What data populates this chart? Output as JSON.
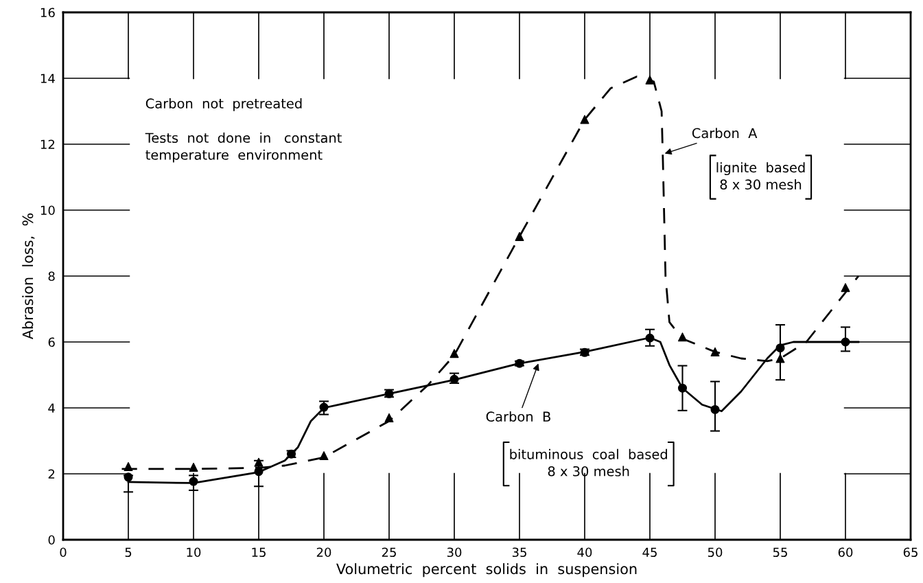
{
  "chart_data": {
    "type": "line",
    "xlabel": "Volumetric  percent  solids  in  suspension",
    "ylabel": "Abrasion  loss,  %",
    "xlim": [
      0,
      65
    ],
    "ylim": [
      0,
      16
    ],
    "xticks": [
      0,
      5,
      10,
      15,
      20,
      25,
      30,
      35,
      40,
      45,
      50,
      55,
      60,
      65
    ],
    "yticks": [
      0,
      2,
      4,
      6,
      8,
      10,
      12,
      14,
      16
    ],
    "grid": false,
    "legend": false,
    "series": [
      {
        "line_style": "dashed",
        "color": "#000000",
        "x": [
          4.5,
          10,
          15,
          17,
          20,
          25,
          28,
          30,
          35,
          40,
          42,
          44,
          45.3,
          45.9,
          46,
          46.2,
          46.5,
          47.5,
          50,
          52,
          54,
          55,
          57,
          59,
          61
        ],
        "values": [
          2.15,
          2.15,
          2.18,
          2.25,
          2.5,
          3.6,
          4.7,
          5.6,
          9.2,
          12.75,
          13.7,
          14.05,
          13.9,
          13,
          11.5,
          8,
          6.6,
          6.1,
          5.7,
          5.5,
          5.42,
          5.5,
          6,
          7,
          8
        ]
      },
      {
        "line_style": "solid",
        "color": "#000000",
        "x": [
          5,
          10,
          15,
          17,
          18,
          19,
          20,
          25,
          30,
          35,
          40,
          45,
          45.8,
          46.5,
          47.5,
          49,
          50.5,
          52,
          54,
          55,
          56,
          61
        ],
        "values": [
          1.75,
          1.72,
          2.05,
          2.4,
          2.8,
          3.6,
          4,
          4.43,
          4.85,
          5.35,
          5.7,
          6.13,
          6,
          5.3,
          4.6,
          4.1,
          3.9,
          4.5,
          5.5,
          5.9,
          6,
          6
        ]
      },
      {
        "type": "scatter",
        "marker": "triangle",
        "color": "#000000",
        "x": [
          5,
          10,
          15,
          20,
          25,
          30,
          35,
          40,
          45,
          47.5,
          50,
          55,
          60
        ],
        "values": [
          2.22,
          2.2,
          2.35,
          2.55,
          3.7,
          5.65,
          9.2,
          12.75,
          13.95,
          6.15,
          5.7,
          5.5,
          7.65
        ]
      },
      {
        "type": "scatter",
        "marker": "circle",
        "color": "#000000",
        "x": [
          5,
          10,
          15,
          17.5,
          20,
          25,
          30,
          35,
          40,
          45,
          47.5,
          50,
          55,
          60
        ],
        "values": [
          1.9,
          1.77,
          2.07,
          2.6,
          4.02,
          4.43,
          4.87,
          5.35,
          5.68,
          6.12,
          4.6,
          3.95,
          5.82,
          6.0
        ],
        "errors": [
          [
            1.45,
            1.95
          ],
          [
            1.5,
            1.95
          ],
          [
            1.62,
            2.4
          ],
          [
            2.5,
            2.7
          ],
          [
            3.8,
            4.2
          ],
          [
            4.33,
            4.55
          ],
          [
            4.75,
            5.05
          ],
          [
            5.28,
            5.42
          ],
          [
            5.6,
            5.78
          ],
          [
            5.88,
            6.38
          ],
          [
            3.92,
            5.28
          ],
          [
            3.3,
            4.8
          ],
          [
            4.85,
            6.52
          ],
          [
            5.72,
            6.45
          ]
        ]
      }
    ],
    "annotations": [
      "Carbon  not  pretreated",
      "Tests  not  done  in   constant\ntemperature  environment",
      {
        "text": "Carbon  A",
        "x": 46,
        "y": 11.7
      },
      "lignite  based\n8 x 30 mesh",
      {
        "text": "Carbon  B",
        "x": 36.5,
        "y": 5.4
      },
      "bituminous  coal  based\n8 x 30 mesh"
    ]
  }
}
